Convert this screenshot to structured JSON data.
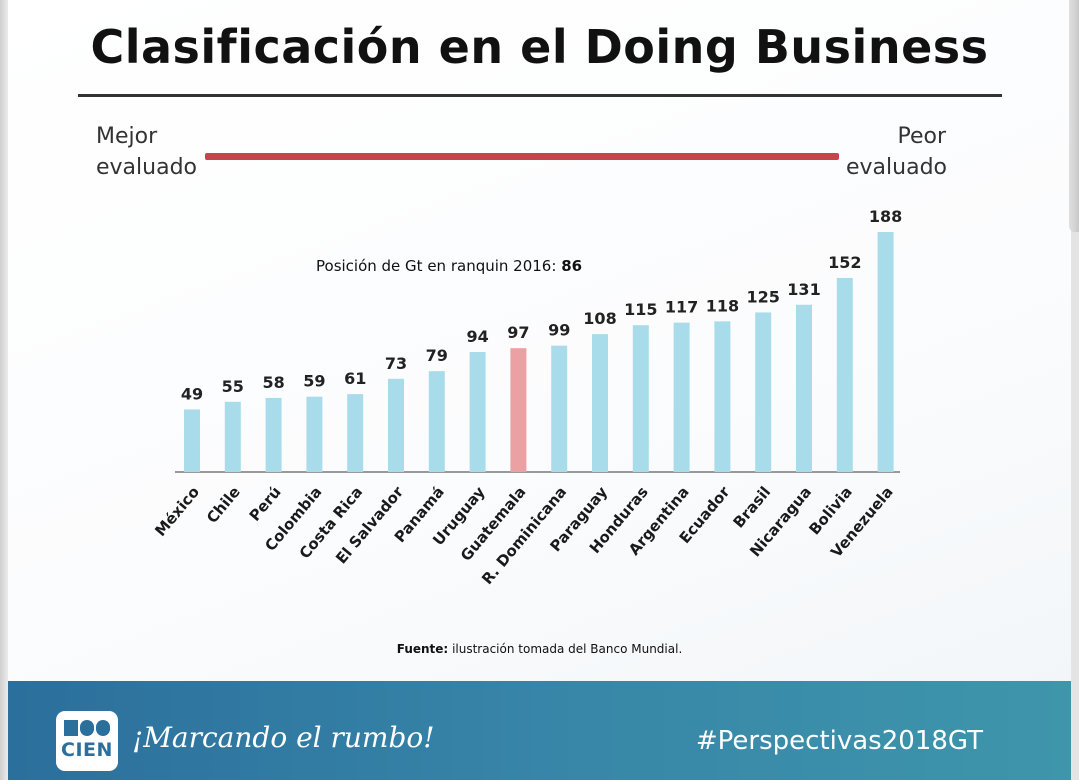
{
  "slide": {
    "title": "Clasificación en el Doing Business",
    "scale_left_line1": "Mejor",
    "scale_left_line2": "evaluado",
    "scale_right_line1": "Peor",
    "scale_right_line2": "evaluado",
    "gt_note_text": "Posición de Gt en ranquin 2016:",
    "gt_note_value": "86",
    "source_label": "Fuente:",
    "source_text": "ilustración tomada del Banco Mundial.",
    "logo_text": "CIEN",
    "slogan": "¡Marcando el rumbo!",
    "hashtag": "#Perspectivas2018GT"
  },
  "colors": {
    "bar": "#a8dcea",
    "highlight_bar": "#eba0a3",
    "scale_bar": "#c9434c",
    "footer": "#3785a8",
    "axis": "#999999"
  },
  "chart_data": {
    "type": "bar",
    "title": "Clasificación en el Doing Business",
    "xlabel": "",
    "ylabel": "",
    "ylim": [
      0,
      190
    ],
    "grid": false,
    "highlight": "Guatemala",
    "categories": [
      "México",
      "Chile",
      "Perú",
      "Colombia",
      "Costa Rica",
      "El Salvador",
      "Panamá",
      "Uruguay",
      "Guatemala",
      "R. Dominicana",
      "Paraguay",
      "Honduras",
      "Argentina",
      "Ecuador",
      "Brasil",
      "Nicaragua",
      "Bolivia",
      "Venezuela"
    ],
    "values": [
      49,
      55,
      58,
      59,
      61,
      73,
      79,
      94,
      97,
      99,
      108,
      115,
      117,
      118,
      125,
      131,
      152,
      188
    ]
  }
}
